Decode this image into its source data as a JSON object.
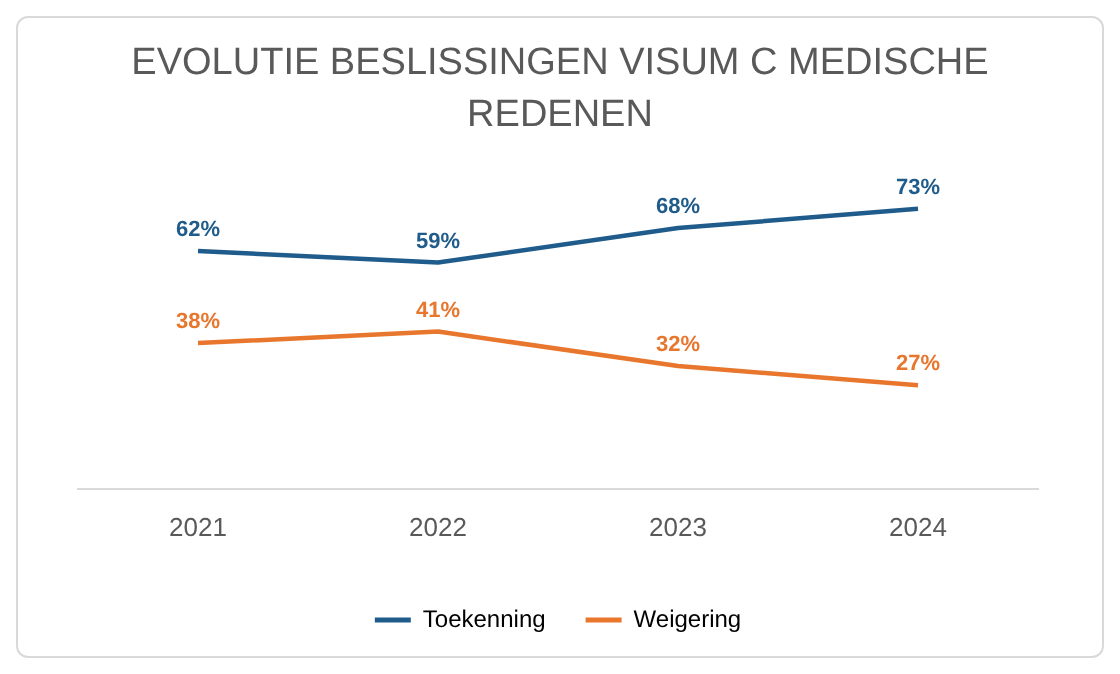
{
  "chart_data": {
    "type": "line",
    "title": "EVOLUTIE BESLISSINGEN VISUM C MEDISCHE REDENEN",
    "categories": [
      "2021",
      "2022",
      "2023",
      "2024"
    ],
    "series": [
      {
        "name": "Toekenning",
        "color": "#1f5c8b",
        "values": [
          62,
          59,
          68,
          73
        ],
        "value_labels": [
          "62%",
          "59%",
          "68%",
          "73%"
        ]
      },
      {
        "name": "Weigering",
        "color": "#e8762d",
        "values": [
          38,
          41,
          32,
          27
        ],
        "value_labels": [
          "38%",
          "41%",
          "32%",
          "27%"
        ]
      }
    ],
    "tick_labels": "x",
    "grid": false,
    "legend": "bottom",
    "marker": "none",
    "line_style": "solid"
  }
}
